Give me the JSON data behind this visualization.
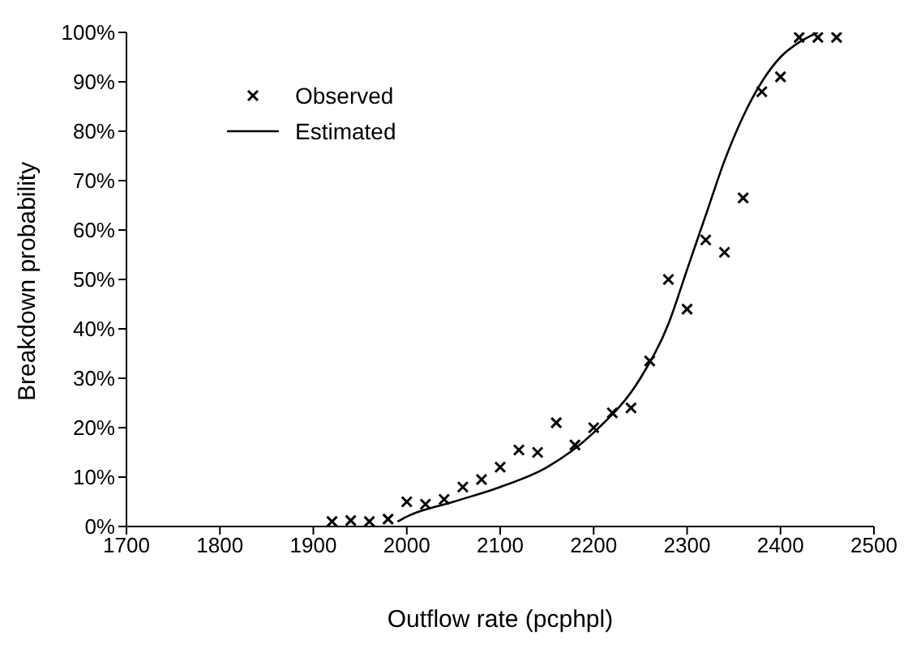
{
  "chart_data": {
    "type": "scatter",
    "xlabel": "Outflow rate (pcphpl)",
    "ylabel": "Breakdown probability",
    "xlim": [
      1700,
      2500
    ],
    "xticks": [
      1700,
      1800,
      1900,
      2000,
      2100,
      2200,
      2300,
      2400,
      2500
    ],
    "ylim": [
      0,
      100
    ],
    "yticks": [
      {
        "value": 0,
        "label": "0%"
      },
      {
        "value": 10,
        "label": "10%"
      },
      {
        "value": 20,
        "label": "20%"
      },
      {
        "value": 30,
        "label": "30%"
      },
      {
        "value": 40,
        "label": "40%"
      },
      {
        "value": 50,
        "label": "50%"
      },
      {
        "value": 60,
        "label": "60%"
      },
      {
        "value": 70,
        "label": "70%"
      },
      {
        "value": 80,
        "label": "80%"
      },
      {
        "value": 90,
        "label": "90%"
      },
      {
        "value": 100,
        "label": "100%"
      }
    ],
    "grid": false,
    "legend": "top left",
    "series": [
      {
        "name": "Observed",
        "marker": "cross",
        "color": "#000000",
        "x": [
          1920,
          1940,
          1960,
          1980,
          2000,
          2020,
          2040,
          2060,
          2080,
          2100,
          2120,
          2140,
          2160,
          2180,
          2200,
          2220,
          2240,
          2260,
          2280,
          2300,
          2320,
          2340,
          2360,
          2380,
          2400,
          2420,
          2440,
          2460
        ],
        "values": [
          1,
          1.2,
          1,
          1.5,
          5,
          4.5,
          5.5,
          8,
          9.5,
          12,
          15.5,
          15,
          21,
          16.5,
          20,
          23,
          24,
          33.5,
          50,
          44,
          58,
          55.5,
          66.5,
          88,
          91,
          99,
          99,
          99
        ]
      },
      {
        "name": "Estimated",
        "type": "line",
        "marker": "none",
        "line_style": "solid",
        "color": "#000000",
        "x": [
          1990,
          2000,
          2050,
          2100,
          2150,
          2200,
          2250,
          2280,
          2300,
          2320,
          2340,
          2360,
          2380,
          2400,
          2420,
          2440
        ],
        "values": [
          1,
          2,
          5,
          8,
          12,
          19,
          30,
          41,
          52,
          63,
          74,
          83,
          90,
          95,
          98,
          100
        ]
      }
    ]
  }
}
